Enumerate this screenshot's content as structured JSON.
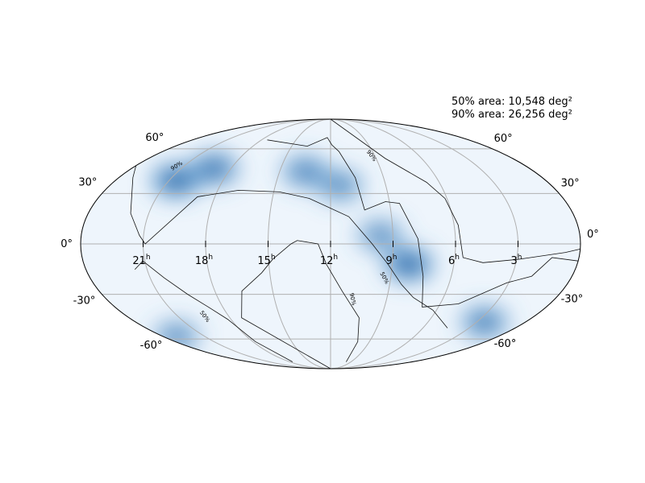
{
  "chart_data": {
    "type": "heatmap",
    "projection": "mollweide",
    "title": "",
    "colormap": "Blues",
    "grid": true,
    "annotations": {
      "area_50": "50% area: 10,548 deg²",
      "area_90": "90% area: 26,256 deg²"
    },
    "ra_ticks": [
      {
        "value_hours": 21,
        "label": "21",
        "sup": "h"
      },
      {
        "value_hours": 18,
        "label": "18",
        "sup": "h"
      },
      {
        "value_hours": 15,
        "label": "15",
        "sup": "h"
      },
      {
        "value_hours": 12,
        "label": "12",
        "sup": "h"
      },
      {
        "value_hours": 9,
        "label": "9",
        "sup": "h"
      },
      {
        "value_hours": 6,
        "label": "6",
        "sup": "h"
      },
      {
        "value_hours": 3,
        "label": "3",
        "sup": "h"
      }
    ],
    "dec_ticks": [
      {
        "value_deg": 60,
        "label": "60°"
      },
      {
        "value_deg": 30,
        "label": "30°"
      },
      {
        "value_deg": 0,
        "label": "0°"
      },
      {
        "value_deg": -30,
        "label": "-30°"
      },
      {
        "value_deg": -60,
        "label": "-60°"
      }
    ],
    "contour_levels": [
      {
        "level": 50,
        "label": "50%"
      },
      {
        "level": 90,
        "label": "90%"
      }
    ],
    "probability_hotspots": [
      {
        "ra_hours": 20.6,
        "dec_deg": 38,
        "weight": 1.0
      },
      {
        "ra_hours": 19.0,
        "dec_deg": 46,
        "weight": 0.85
      },
      {
        "ra_hours": 8.2,
        "dec_deg": -12,
        "weight": 1.0
      },
      {
        "ra_hours": 9.6,
        "dec_deg": 5,
        "weight": 0.6
      },
      {
        "ra_hours": 11.5,
        "dec_deg": 35,
        "weight": 0.65
      },
      {
        "ra_hours": 13.5,
        "dec_deg": 44,
        "weight": 0.7
      },
      {
        "ra_hours": 2.5,
        "dec_deg": -48,
        "weight": 0.75
      },
      {
        "ra_hours": 23.0,
        "dec_deg": -58,
        "weight": 0.6
      }
    ]
  }
}
